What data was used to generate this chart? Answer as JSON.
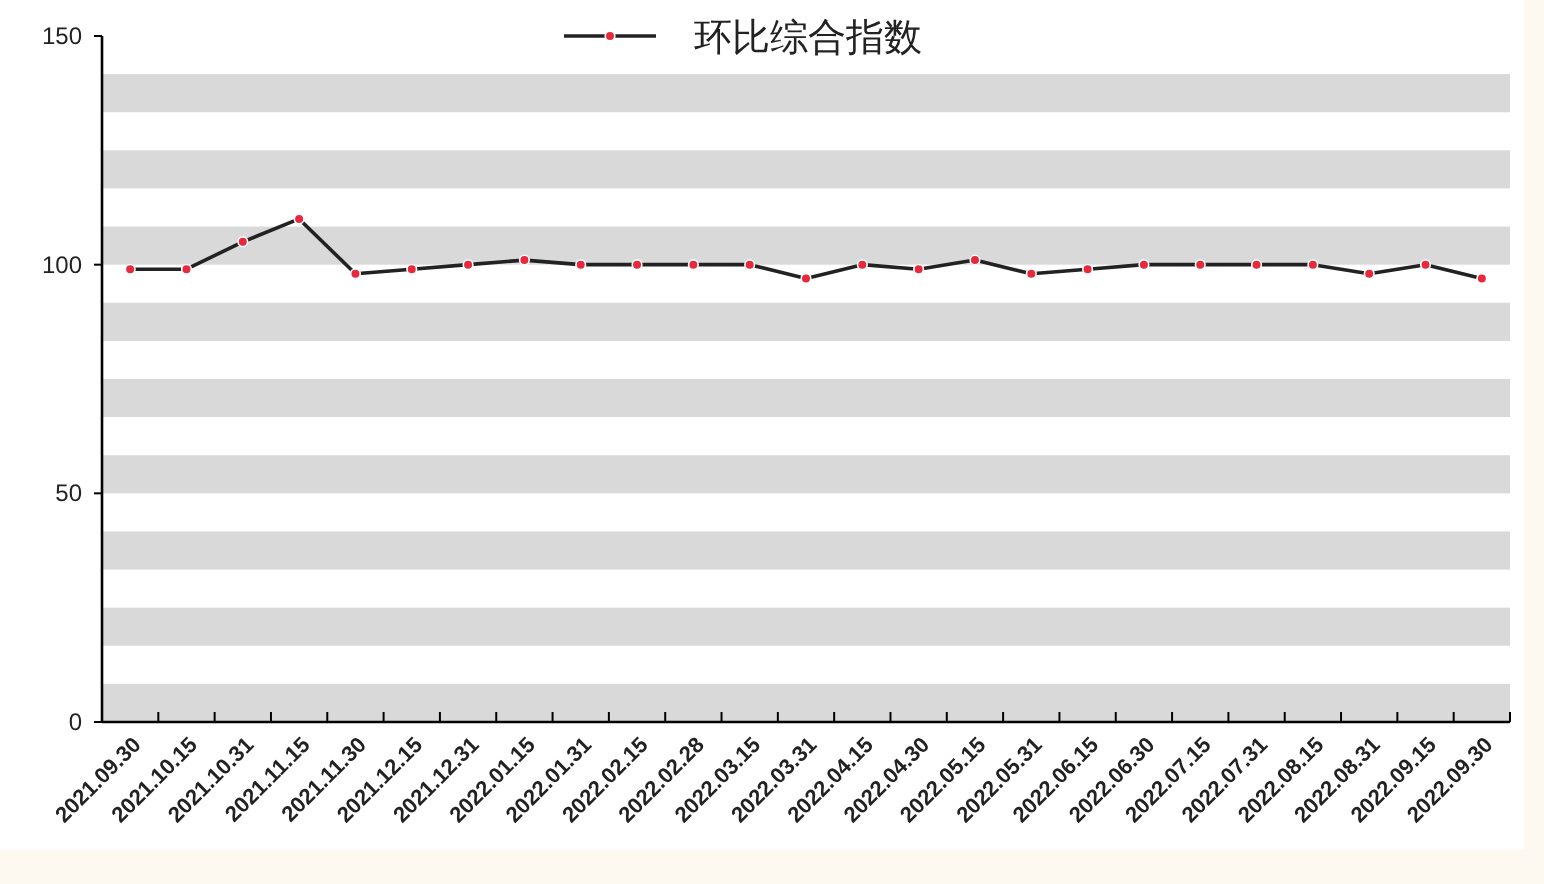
{
  "chart_data": {
    "type": "line",
    "categories": [
      "2021.09.30",
      "2021.10.15",
      "2021.10.31",
      "2021.11.15",
      "2021.11.30",
      "2021.12.15",
      "2021.12.31",
      "2022.01.15",
      "2022.01.31",
      "2022.02.15",
      "2022.02.28",
      "2022.03.15",
      "2022.03.31",
      "2022.04.15",
      "2022.04.30",
      "2022.05.15",
      "2022.05.31",
      "2022.06.15",
      "2022.06.30",
      "2022.07.15",
      "2022.07.31",
      "2022.08.15",
      "2022.08.31",
      "2022.09.15",
      "2022.09.30"
    ],
    "series": [
      {
        "name": "环比综合指数",
        "color": "#222222",
        "values": [
          99,
          99,
          105,
          110,
          98,
          99,
          100,
          101,
          100,
          100,
          100,
          100,
          97,
          100,
          99,
          101,
          98,
          99,
          100,
          100,
          100,
          100,
          98,
          100,
          97
        ]
      }
    ],
    "bands": [
      {
        "axis": "y",
        "from": 0,
        "to": 8.33,
        "color": "#d9d9d9"
      },
      {
        "axis": "y",
        "from": 16.67,
        "to": 25,
        "color": "#d9d9d9"
      },
      {
        "axis": "y",
        "from": 33.33,
        "to": 41.67,
        "color": "#d9d9d9"
      },
      {
        "axis": "y",
        "from": 50,
        "to": 58.33,
        "color": "#d9d9d9"
      },
      {
        "axis": "y",
        "from": 66.67,
        "to": 75,
        "color": "#d9d9d9"
      },
      {
        "axis": "y",
        "from": 83.33,
        "to": 91.67,
        "color": "#d9d9d9"
      },
      {
        "axis": "y",
        "from": 100,
        "to": 108.33,
        "color": "#d9d9d9"
      },
      {
        "axis": "y",
        "from": 116.67,
        "to": 125,
        "color": "#d9d9d9"
      },
      {
        "axis": "y",
        "from": 133.33,
        "to": 141.67,
        "color": "#d9d9d9"
      }
    ],
    "ylim": [
      0,
      150
    ],
    "yticks": [
      0,
      50,
      100,
      150
    ],
    "legend": "top",
    "marker": "circle",
    "line_style": "solid"
  }
}
